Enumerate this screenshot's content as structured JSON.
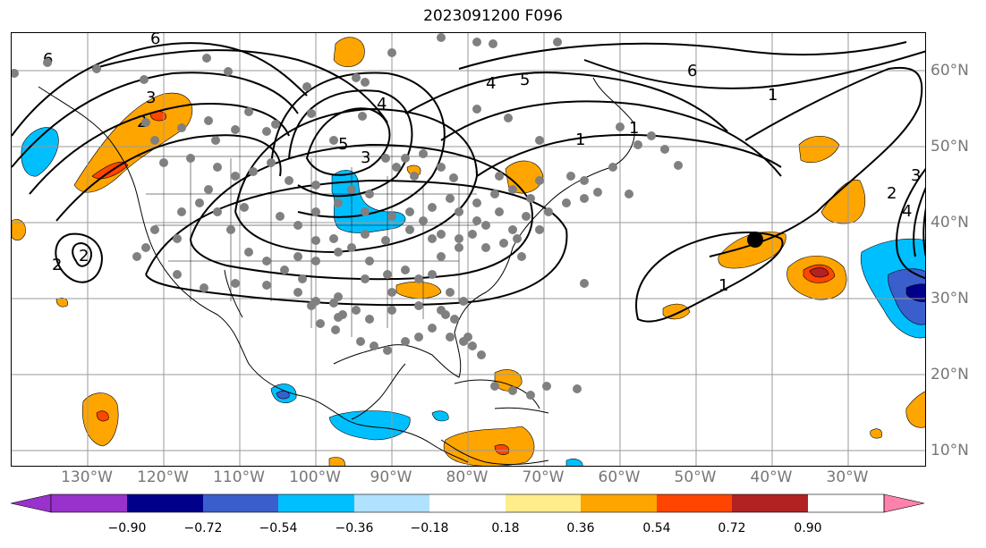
{
  "title": "2023091200 F096",
  "lon_labels": [
    "130°W",
    "120°W",
    "110°W",
    "100°W",
    "90°W",
    "80°W",
    "70°W",
    "60°W",
    "50°W",
    "40°W",
    "30°W"
  ],
  "lat_labels": [
    "60°N",
    "50°N",
    "40°N",
    "30°N",
    "20°N",
    "10°N"
  ],
  "colorbar": {
    "ticks": [
      "−0.90",
      "−0.72",
      "−0.54",
      "−0.36",
      "−0.18",
      "0.18",
      "0.36",
      "0.54",
      "0.72",
      "0.90"
    ],
    "colors": [
      "#9932cc",
      "#00008b",
      "#3a5fcd",
      "#00bfff",
      "#b0e2ff",
      "#ffffff",
      "#ffec8b",
      "#ffa500",
      "#ff4500",
      "#b22222",
      "#ff82ab"
    ]
  },
  "contour_labels": [
    "6",
    "6",
    "6",
    "5",
    "5",
    "4",
    "4",
    "4",
    "3",
    "3",
    "3",
    "2",
    "2",
    "2",
    "2",
    "1",
    "1",
    "1",
    "1"
  ],
  "colors": {
    "contour": "#000000",
    "marker": "#808080",
    "grid": "#9a9a9a"
  }
}
